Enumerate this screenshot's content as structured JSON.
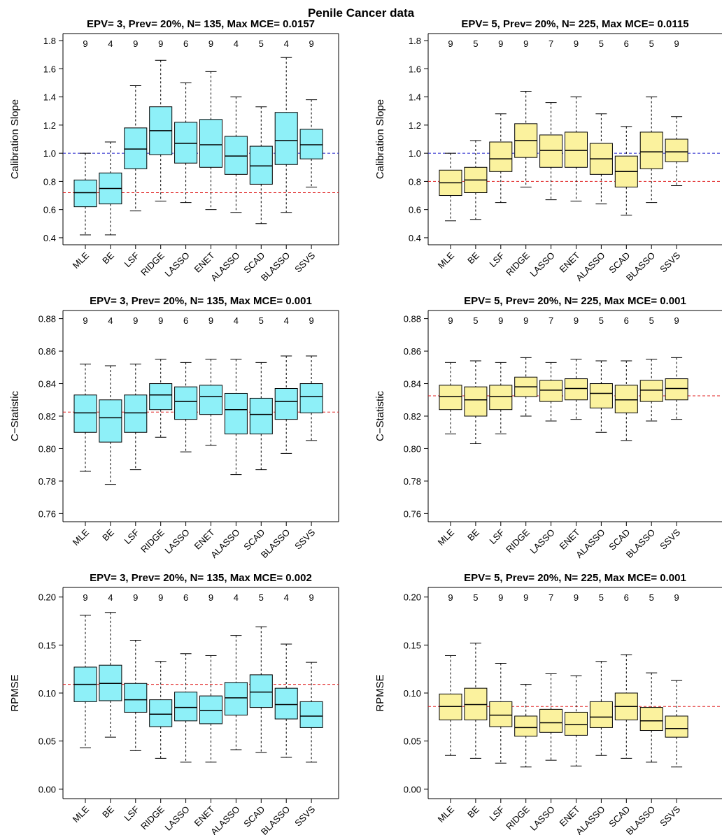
{
  "title": "Penile Cancer data",
  "colors": {
    "left_fill": "#8ef0f8",
    "right_fill": "#fbf29e",
    "blue_ref": "#2222cc",
    "red_ref": "#e02020"
  },
  "chart_data": [
    {
      "type": "boxplot",
      "title": "EPV= 3, Prev= 20%, N= 135, Max MCE= 0.0157",
      "ylabel": "Calibration Slope",
      "ylim": [
        0.35,
        1.85
      ],
      "yticks": [
        "0.4",
        "0.6",
        "0.8",
        "1.0",
        "1.2",
        "1.4",
        "1.6",
        "1.8"
      ],
      "categories": [
        "MLE",
        "BE",
        "LSF",
        "RIDGE",
        "LASSO",
        "ENET",
        "ALASSO",
        "SCAD",
        "BLASSO",
        "SSVS"
      ],
      "counts": [
        "9",
        "4",
        "9",
        "9",
        "6",
        "9",
        "4",
        "5",
        "4",
        "9"
      ],
      "ref_lines": [
        {
          "value": 1.0,
          "color": "blue"
        },
        {
          "value": 0.72,
          "color": "red"
        }
      ],
      "boxes": [
        [
          0.42,
          0.62,
          0.72,
          0.81,
          1.0
        ],
        [
          0.42,
          0.64,
          0.75,
          0.86,
          1.08
        ],
        [
          0.59,
          0.89,
          1.03,
          1.18,
          1.48
        ],
        [
          0.66,
          0.99,
          1.16,
          1.33,
          1.66
        ],
        [
          0.65,
          0.93,
          1.07,
          1.22,
          1.5
        ],
        [
          0.6,
          0.9,
          1.06,
          1.24,
          1.58
        ],
        [
          0.58,
          0.85,
          0.98,
          1.12,
          1.4
        ],
        [
          0.5,
          0.78,
          0.91,
          1.05,
          1.33
        ],
        [
          0.58,
          0.92,
          1.09,
          1.29,
          1.68
        ],
        [
          0.76,
          0.96,
          1.06,
          1.17,
          1.38
        ]
      ]
    },
    {
      "type": "boxplot",
      "title": "EPV= 5, Prev= 20%, N= 225, Max MCE= 0.0115",
      "ylabel": "Calibration Slope",
      "ylim": [
        0.35,
        1.85
      ],
      "yticks": [
        "0.4",
        "0.6",
        "0.8",
        "1.0",
        "1.2",
        "1.4",
        "1.6",
        "1.8"
      ],
      "categories": [
        "MLE",
        "BE",
        "LSF",
        "RIDGE",
        "LASSO",
        "ENET",
        "ALASSO",
        "SCAD",
        "BLASSO",
        "SSVS"
      ],
      "counts": [
        "9",
        "5",
        "9",
        "9",
        "7",
        "9",
        "5",
        "6",
        "5",
        "9"
      ],
      "ref_lines": [
        {
          "value": 1.0,
          "color": "blue"
        },
        {
          "value": 0.8,
          "color": "red"
        }
      ],
      "boxes": [
        [
          0.52,
          0.7,
          0.79,
          0.88,
          1.0
        ],
        [
          0.53,
          0.72,
          0.81,
          0.9,
          1.09
        ],
        [
          0.65,
          0.87,
          0.96,
          1.08,
          1.28
        ],
        [
          0.76,
          0.97,
          1.09,
          1.21,
          1.44
        ],
        [
          0.67,
          0.9,
          1.02,
          1.13,
          1.36
        ],
        [
          0.66,
          0.9,
          1.02,
          1.15,
          1.4
        ],
        [
          0.64,
          0.85,
          0.96,
          1.07,
          1.28
        ],
        [
          0.56,
          0.76,
          0.87,
          0.98,
          1.19
        ],
        [
          0.65,
          0.89,
          1.01,
          1.15,
          1.4
        ],
        [
          0.77,
          0.94,
          1.01,
          1.1,
          1.26
        ]
      ]
    },
    {
      "type": "boxplot",
      "title": "EPV= 3, Prev= 20%, N= 135, Max MCE= 0.001",
      "ylabel": "C−Statistic",
      "ylim": [
        0.755,
        0.885
      ],
      "yticks": [
        "0.76",
        "0.78",
        "0.80",
        "0.82",
        "0.84",
        "0.86",
        "0.88"
      ],
      "categories": [
        "MLE",
        "BE",
        "LSF",
        "RIDGE",
        "LASSO",
        "ENET",
        "ALASSO",
        "SCAD",
        "BLASSO",
        "SSVS"
      ],
      "counts": [
        "9",
        "4",
        "9",
        "9",
        "6",
        "9",
        "4",
        "5",
        "4",
        "9"
      ],
      "ref_lines": [
        {
          "value": 0.8225,
          "color": "red"
        }
      ],
      "boxes": [
        [
          0.786,
          0.81,
          0.822,
          0.833,
          0.852
        ],
        [
          0.778,
          0.804,
          0.819,
          0.83,
          0.851
        ],
        [
          0.787,
          0.81,
          0.822,
          0.833,
          0.852
        ],
        [
          0.807,
          0.824,
          0.833,
          0.84,
          0.855
        ],
        [
          0.798,
          0.818,
          0.829,
          0.838,
          0.853
        ],
        [
          0.802,
          0.821,
          0.832,
          0.839,
          0.855
        ],
        [
          0.784,
          0.809,
          0.824,
          0.834,
          0.855
        ],
        [
          0.787,
          0.809,
          0.821,
          0.831,
          0.853
        ],
        [
          0.797,
          0.818,
          0.829,
          0.837,
          0.857
        ],
        [
          0.805,
          0.822,
          0.832,
          0.84,
          0.857
        ]
      ]
    },
    {
      "type": "boxplot",
      "title": "EPV= 5, Prev= 20%, N= 225, Max MCE= 0.001",
      "ylabel": "C−Statistic",
      "ylim": [
        0.755,
        0.885
      ],
      "yticks": [
        "0.76",
        "0.78",
        "0.80",
        "0.82",
        "0.84",
        "0.86",
        "0.88"
      ],
      "categories": [
        "MLE",
        "BE",
        "LSF",
        "RIDGE",
        "LASSO",
        "ENET",
        "ALASSO",
        "SCAD",
        "BLASSO",
        "SSVS"
      ],
      "counts": [
        "9",
        "5",
        "9",
        "9",
        "7",
        "9",
        "5",
        "6",
        "5",
        "9"
      ],
      "ref_lines": [
        {
          "value": 0.8325,
          "color": "red"
        }
      ],
      "boxes": [
        [
          0.809,
          0.824,
          0.832,
          0.839,
          0.853
        ],
        [
          0.803,
          0.82,
          0.83,
          0.838,
          0.854
        ],
        [
          0.809,
          0.824,
          0.832,
          0.839,
          0.853
        ],
        [
          0.82,
          0.832,
          0.838,
          0.844,
          0.856
        ],
        [
          0.817,
          0.829,
          0.836,
          0.842,
          0.853
        ],
        [
          0.818,
          0.83,
          0.837,
          0.843,
          0.855
        ],
        [
          0.81,
          0.825,
          0.834,
          0.84,
          0.854
        ],
        [
          0.805,
          0.822,
          0.83,
          0.839,
          0.854
        ],
        [
          0.817,
          0.829,
          0.836,
          0.842,
          0.855
        ],
        [
          0.818,
          0.83,
          0.837,
          0.843,
          0.856
        ]
      ]
    },
    {
      "type": "boxplot",
      "title": "EPV= 3, Prev= 20%, N= 135, Max MCE= 0.002",
      "ylabel": "RPMSE",
      "ylim": [
        -0.01,
        0.21
      ],
      "yticks": [
        "0.00",
        "0.05",
        "0.10",
        "0.15",
        "0.20"
      ],
      "categories": [
        "MLE",
        "BE",
        "LSF",
        "RIDGE",
        "LASSO",
        "ENET",
        "ALASSO",
        "SCAD",
        "BLASSO",
        "SSVS"
      ],
      "counts": [
        "9",
        "4",
        "9",
        "9",
        "6",
        "9",
        "4",
        "5",
        "4",
        "9"
      ],
      "ref_lines": [
        {
          "value": 0.109,
          "color": "red"
        }
      ],
      "boxes": [
        [
          0.043,
          0.091,
          0.109,
          0.127,
          0.181
        ],
        [
          0.054,
          0.092,
          0.11,
          0.129,
          0.184
        ],
        [
          0.04,
          0.08,
          0.093,
          0.11,
          0.155
        ],
        [
          0.032,
          0.065,
          0.078,
          0.093,
          0.133
        ],
        [
          0.028,
          0.071,
          0.085,
          0.101,
          0.141
        ],
        [
          0.028,
          0.068,
          0.082,
          0.097,
          0.139
        ],
        [
          0.041,
          0.077,
          0.095,
          0.111,
          0.16
        ],
        [
          0.038,
          0.085,
          0.101,
          0.119,
          0.169
        ],
        [
          0.033,
          0.073,
          0.088,
          0.105,
          0.151
        ],
        [
          0.028,
          0.064,
          0.076,
          0.091,
          0.132
        ]
      ]
    },
    {
      "type": "boxplot",
      "title": "EPV= 5, Prev= 20%, N= 225, Max MCE= 0.001",
      "ylabel": "RPMSE",
      "ylim": [
        -0.01,
        0.21
      ],
      "yticks": [
        "0.00",
        "0.05",
        "0.10",
        "0.15",
        "0.20"
      ],
      "categories": [
        "MLE",
        "BE",
        "LSF",
        "RIDGE",
        "LASSO",
        "ENET",
        "ALASSO",
        "SCAD",
        "BLASSO",
        "SSVS"
      ],
      "counts": [
        "9",
        "5",
        "9",
        "9",
        "7",
        "9",
        "5",
        "6",
        "5",
        "9"
      ],
      "ref_lines": [
        {
          "value": 0.086,
          "color": "red"
        }
      ],
      "boxes": [
        [
          0.035,
          0.072,
          0.086,
          0.099,
          0.139
        ],
        [
          0.032,
          0.072,
          0.088,
          0.105,
          0.152
        ],
        [
          0.027,
          0.065,
          0.077,
          0.091,
          0.131
        ],
        [
          0.023,
          0.055,
          0.064,
          0.076,
          0.109
        ],
        [
          0.03,
          0.059,
          0.069,
          0.083,
          0.12
        ],
        [
          0.024,
          0.056,
          0.067,
          0.08,
          0.118
        ],
        [
          0.035,
          0.064,
          0.075,
          0.091,
          0.133
        ],
        [
          0.032,
          0.072,
          0.086,
          0.1,
          0.14
        ],
        [
          0.028,
          0.061,
          0.071,
          0.085,
          0.121
        ],
        [
          0.023,
          0.054,
          0.063,
          0.076,
          0.113
        ]
      ]
    }
  ]
}
